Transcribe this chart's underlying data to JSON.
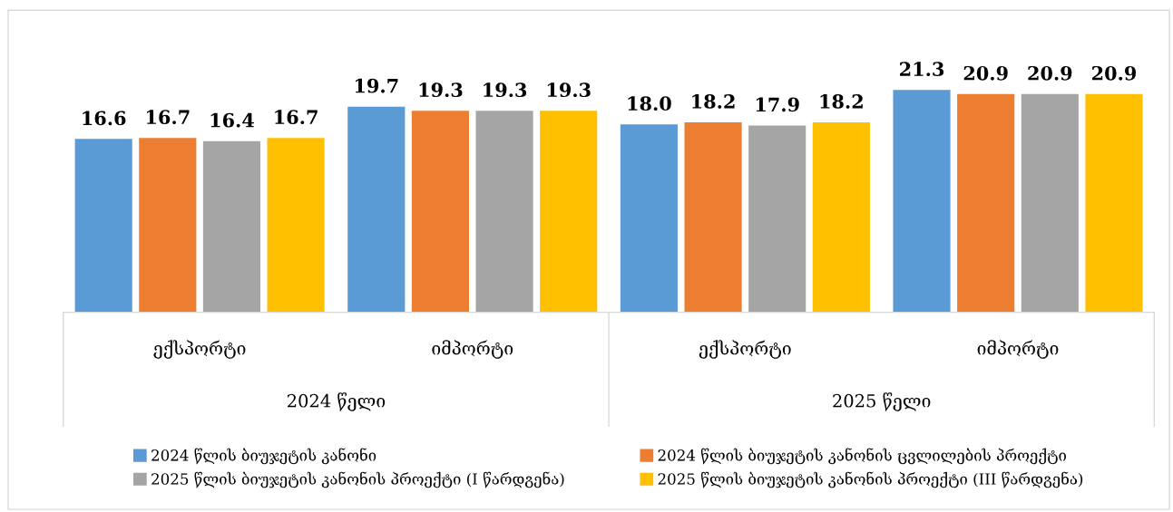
{
  "chart_data": {
    "type": "bar",
    "categories": [
      "ექსპორტი",
      "იმპორტი",
      "ექსპორტი",
      "იმპორტი"
    ],
    "annotations": [
      "2024 წელი",
      "2025 წელი"
    ],
    "series": [
      {
        "name": "2024 წლის ბიუჯეტის კანონი",
        "color": "#5b9bd5",
        "values": [
          16.6,
          19.7,
          18.0,
          21.3
        ],
        "value_labels": [
          "16.6",
          "19.7",
          "18.0",
          "21.3"
        ]
      },
      {
        "name": "2024 წლის ბიუჯეტის კანონის ცვლილების პროექტი",
        "color": "#ed7d31",
        "values": [
          16.7,
          19.3,
          18.2,
          20.9
        ],
        "value_labels": [
          "16.7",
          "19.3",
          "18.2",
          "20.9"
        ]
      },
      {
        "name": "2025 წლის ბიუჯეტის კანონის პროექტი (I წარდგენა)",
        "color": "#a5a5a5",
        "values": [
          16.4,
          19.3,
          17.9,
          20.9
        ],
        "value_labels": [
          "16.4",
          "19.3",
          "17.9",
          "20.9"
        ]
      },
      {
        "name": "2025 წლის ბიუჯეტის კანონის პროექტი (III წარდგენა)",
        "color": "#ffc000",
        "values": [
          16.7,
          19.3,
          18.2,
          20.9
        ],
        "value_labels": [
          "16.7",
          "19.3",
          "18.2",
          "20.9"
        ]
      }
    ],
    "legend": "bottom",
    "grid": false
  }
}
